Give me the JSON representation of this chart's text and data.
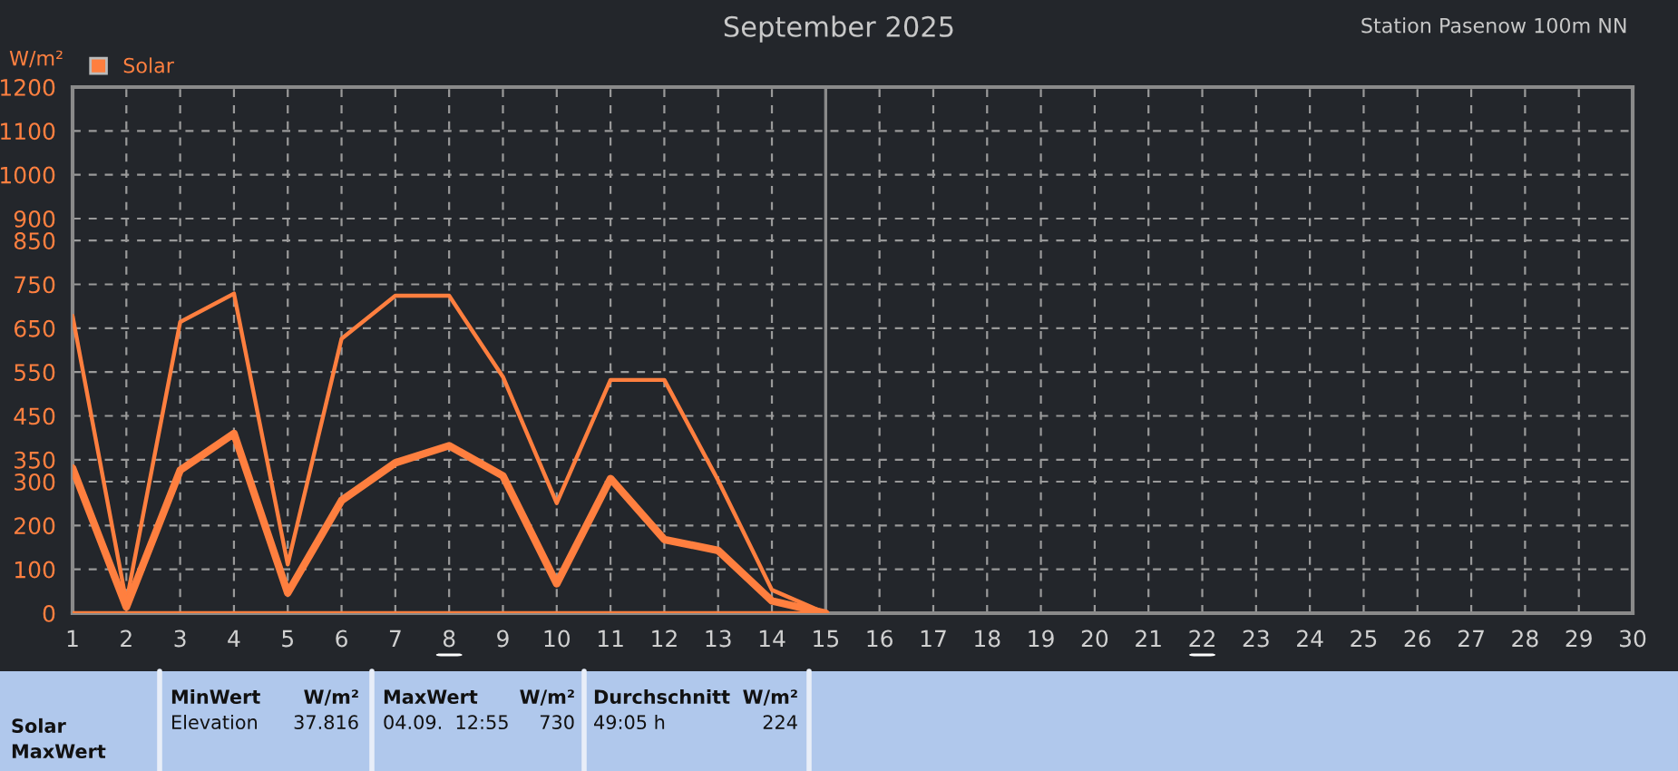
{
  "chart_data": {
    "type": "line",
    "title": "September 2025",
    "subtitle": "Station Pasenow 100m NN",
    "ylabel": "W/m²",
    "x": [
      1,
      2,
      3,
      4,
      5,
      6,
      7,
      8,
      9,
      10,
      11,
      12,
      13,
      14,
      15
    ],
    "series": [
      {
        "name": "Solar",
        "color": "#ff7f3f",
        "values": [
          678,
          25,
          664,
          729,
          111,
          626,
          724,
          724,
          539,
          251,
          532,
          532,
          303,
          53,
          0
        ]
      },
      {
        "color": "#ff7f3f",
        "values": [
          331,
          14,
          326,
          410,
          46,
          257,
          343,
          382,
          313,
          67,
          307,
          168,
          143,
          28,
          0
        ]
      },
      {
        "color": "#ff7f3f",
        "values": [
          0,
          0,
          0,
          0,
          0,
          0,
          0,
          0,
          0,
          0,
          0,
          0,
          0,
          0,
          0
        ]
      }
    ],
    "xlim": [
      1,
      30
    ],
    "xticks": [
      1,
      2,
      3,
      4,
      5,
      6,
      7,
      8,
      9,
      10,
      11,
      12,
      13,
      14,
      15,
      16,
      17,
      18,
      19,
      20,
      21,
      22,
      23,
      24,
      25,
      26,
      27,
      28,
      29,
      30
    ],
    "ylim": [
      0,
      1200
    ],
    "yticks": [
      0,
      100,
      200,
      300,
      350,
      450,
      550,
      650,
      750,
      850,
      900,
      1000,
      1100,
      1200
    ],
    "grid": true,
    "legend": "top left",
    "marker": "none",
    "line_style": "solid",
    "ref_lines": [
      {
        "axis": "x",
        "value": 15,
        "color": "#8a8a8a"
      }
    ],
    "annotations": [
      "Solar\nMaxWert",
      "MinWert",
      "W/m²",
      "Elevation",
      "37.816",
      "MaxWert",
      "W/m²",
      "04.09.  12:55",
      "730",
      "Durchschnitt",
      "W/m²",
      "49:05 h",
      "224"
    ]
  }
}
